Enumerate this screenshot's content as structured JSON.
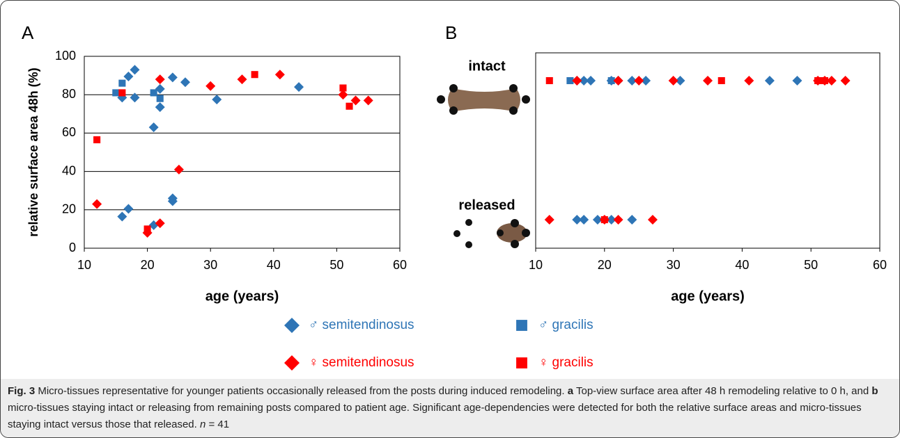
{
  "chart_data": [
    {
      "type": "scatter",
      "panel": "A",
      "xlabel": "age (years)",
      "ylabel": "relative surface area 48h (%)",
      "xlim": [
        10,
        60
      ],
      "xticks": [
        10,
        20,
        30,
        40,
        50,
        60
      ],
      "ylim": [
        0,
        100
      ],
      "yticks": [
        0,
        20,
        40,
        60,
        80,
        100
      ],
      "grid": true,
      "series": [
        {
          "name": "♂ semitendinosus",
          "color": "#2e75b6",
          "marker": "diamond",
          "x": [
            16,
            17,
            18,
            18,
            21,
            22,
            22,
            24,
            26,
            31,
            44,
            16,
            17,
            21,
            24,
            24
          ],
          "values": [
            78.5,
            89.5,
            93,
            78.5,
            63,
            83,
            73.5,
            89,
            86.5,
            77.5,
            84,
            16.5,
            20.5,
            12,
            26,
            24.5
          ]
        },
        {
          "name": "♂ gracilis",
          "color": "#2e75b6",
          "marker": "square",
          "x": [
            15,
            16,
            21,
            22
          ],
          "values": [
            81,
            86,
            81,
            78
          ]
        },
        {
          "name": "♀ semitendinosus",
          "color": "#ff0000",
          "marker": "diamond",
          "x": [
            12,
            20,
            22,
            22,
            25,
            30,
            35,
            41,
            51,
            53,
            55
          ],
          "values": [
            23,
            8,
            88,
            13,
            41,
            84.5,
            88,
            90.5,
            80,
            77,
            77
          ]
        },
        {
          "name": "♀ gracilis",
          "color": "#ff0000",
          "marker": "square",
          "x": [
            12,
            16,
            20,
            37,
            51,
            52
          ],
          "values": [
            56.5,
            81,
            10,
            90.5,
            83.5,
            74
          ]
        }
      ]
    },
    {
      "type": "strip",
      "panel": "B",
      "xlabel": "age (years)",
      "xlim": [
        10,
        60
      ],
      "xticks": [
        10,
        20,
        30,
        40,
        50,
        60
      ],
      "y_categories": [
        "intact",
        "released"
      ],
      "series": [
        {
          "name": "♂ semitendinosus",
          "color": "#2e75b6",
          "marker": "diamond",
          "x": [
            16,
            17,
            18,
            21,
            22,
            24,
            26,
            31,
            44,
            48,
            16,
            17,
            19,
            21,
            24
          ],
          "values": [
            "intact",
            "intact",
            "intact",
            "intact",
            "intact",
            "intact",
            "intact",
            "intact",
            "intact",
            "intact",
            "released",
            "released",
            "released",
            "released",
            "released"
          ]
        },
        {
          "name": "♂ gracilis",
          "color": "#2e75b6",
          "marker": "square",
          "x": [
            15,
            21
          ],
          "values": [
            "intact",
            "intact"
          ]
        },
        {
          "name": "♀ semitendinosus",
          "color": "#ff0000",
          "marker": "diamond",
          "x": [
            16,
            22,
            25,
            30,
            35,
            41,
            51,
            52,
            53,
            55,
            12,
            20,
            22,
            27
          ],
          "values": [
            "intact",
            "intact",
            "intact",
            "intact",
            "intact",
            "intact",
            "intact",
            "intact",
            "intact",
            "intact",
            "released",
            "released",
            "released",
            "released"
          ]
        },
        {
          "name": "♀ gracilis",
          "color": "#ff0000",
          "marker": "square",
          "x": [
            12,
            37,
            51,
            52,
            20
          ],
          "values": [
            "intact",
            "intact",
            "intact",
            "intact",
            "released"
          ]
        }
      ]
    }
  ],
  "caption": [
    "Fig. 3",
    " Micro-tissues representative for younger patients occasionally released from the posts during induced remodeling. ",
    "a",
    " Top-view surface area after 48 h remodeling relative to 0 h, and ",
    "b",
    " micro-tissues staying intact or releasing from remaining posts compared to patient age. Significant age-dependencies were detected for both the relative surface areas and micro-tissues staying intact versus those that released. ",
    "n",
    " = 41"
  ]
}
